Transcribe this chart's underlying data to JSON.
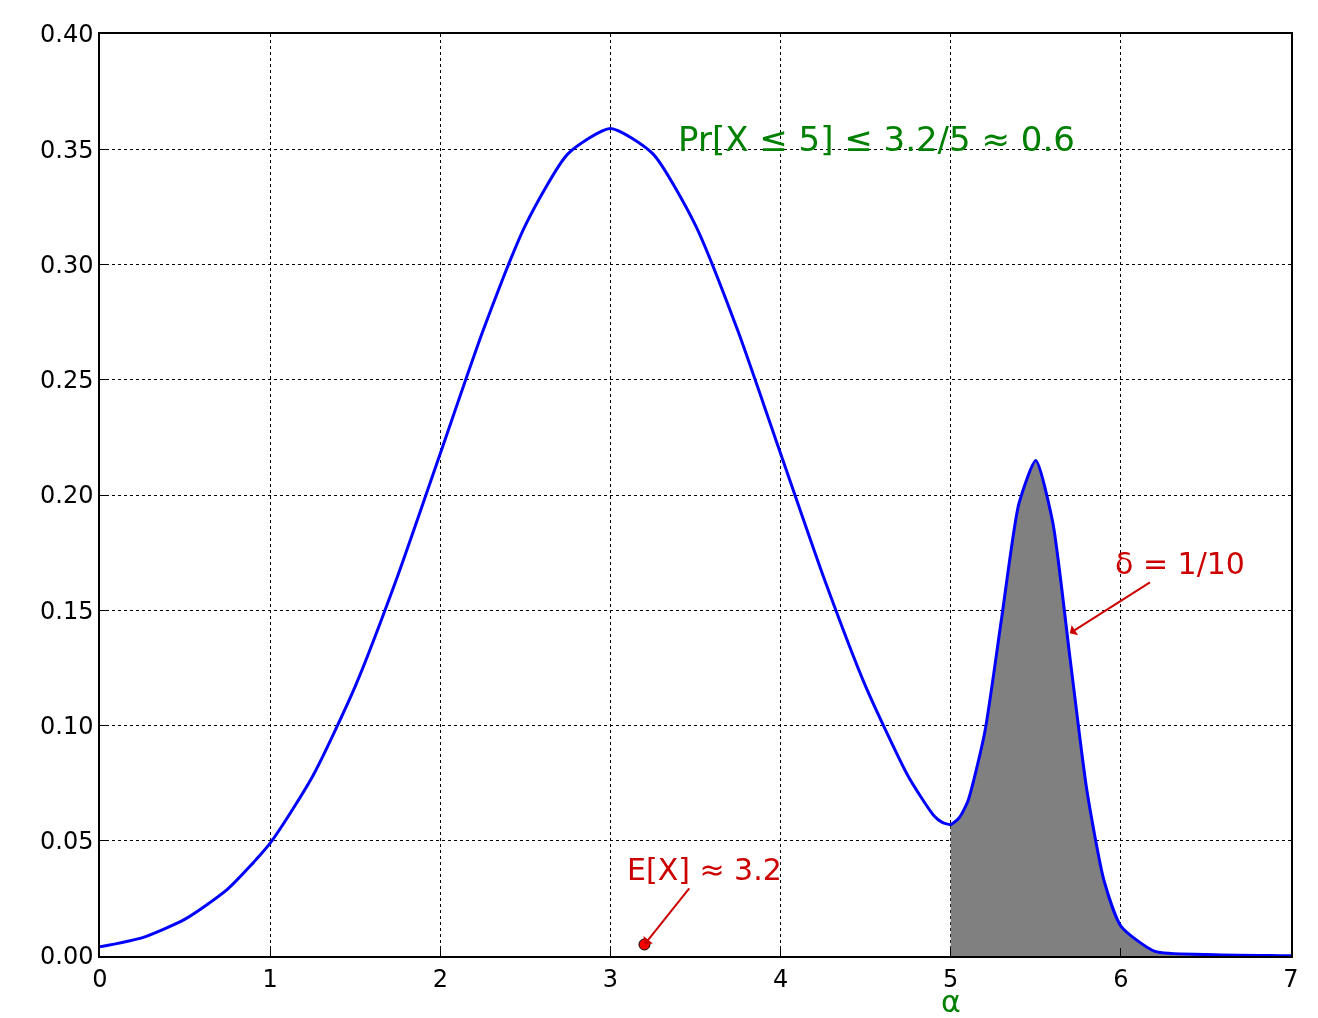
{
  "chart_data": {
    "type": "line",
    "xlim": [
      0,
      7
    ],
    "ylim": [
      0,
      0.4
    ],
    "xticks": [
      0,
      1,
      2,
      3,
      4,
      5,
      6,
      7
    ],
    "yticks": [
      {
        "value": 0,
        "label": "0.00"
      },
      {
        "value": 0.05,
        "label": "0.05"
      },
      {
        "value": 0.1,
        "label": "0.10"
      },
      {
        "value": 0.15,
        "label": "0.15"
      },
      {
        "value": 0.2,
        "label": "0.20"
      },
      {
        "value": 0.25,
        "label": "0.25"
      },
      {
        "value": 0.3,
        "label": "0.30"
      },
      {
        "value": 0.35,
        "label": "0.35"
      },
      {
        "value": 0.4,
        "label": "0.40"
      }
    ],
    "grid": true,
    "series": [
      {
        "type": "area",
        "color": "#808080",
        "x": [
          5,
          5.05,
          5.1,
          5.2,
          5.3,
          5.4,
          5.5,
          5.6,
          5.7,
          5.8,
          5.9,
          6,
          6.2,
          6.5,
          7
        ],
        "values": [
          0.057,
          0.06,
          0.067,
          0.097,
          0.147,
          0.196,
          0.215,
          0.188,
          0.13,
          0.072,
          0.033,
          0.013,
          0.002,
          0.0007,
          0.0001
        ]
      },
      {
        "type": "line",
        "color": "#0000ff",
        "x": [
          0,
          0.25,
          0.5,
          0.75,
          1,
          1.25,
          1.5,
          1.75,
          2,
          2.25,
          2.5,
          2.75,
          3,
          3.25,
          3.5,
          3.75,
          4,
          4.25,
          4.5,
          4.75,
          4.9,
          4.95,
          5,
          5.05,
          5.1,
          5.2,
          5.3,
          5.4,
          5.5,
          5.6,
          5.7,
          5.8,
          5.9,
          6,
          6.2,
          6.5,
          7
        ],
        "values": [
          0.004,
          0.008,
          0.016,
          0.029,
          0.049,
          0.078,
          0.117,
          0.165,
          0.218,
          0.271,
          0.317,
          0.348,
          0.359,
          0.348,
          0.317,
          0.271,
          0.218,
          0.165,
          0.117,
          0.078,
          0.061,
          0.058,
          0.057,
          0.06,
          0.067,
          0.097,
          0.147,
          0.196,
          0.215,
          0.188,
          0.13,
          0.072,
          0.033,
          0.013,
          0.002,
          0.0007,
          0.0001
        ]
      },
      {
        "type": "scatter",
        "color": "#ff0000",
        "x": [
          3.2
        ],
        "values": [
          0.005
        ]
      }
    ],
    "annotations": [
      "Pr[X ≤ 5] ≤ 3.2/5 ≈ 0.6",
      {
        "text": "E[X] ≈ 3.2",
        "x": 3.2,
        "y": 0.005
      },
      {
        "text": "δ = 1/10",
        "x": 5.7,
        "y": 0.14
      },
      {
        "text": "α",
        "x": 5,
        "y": 0
      }
    ]
  }
}
